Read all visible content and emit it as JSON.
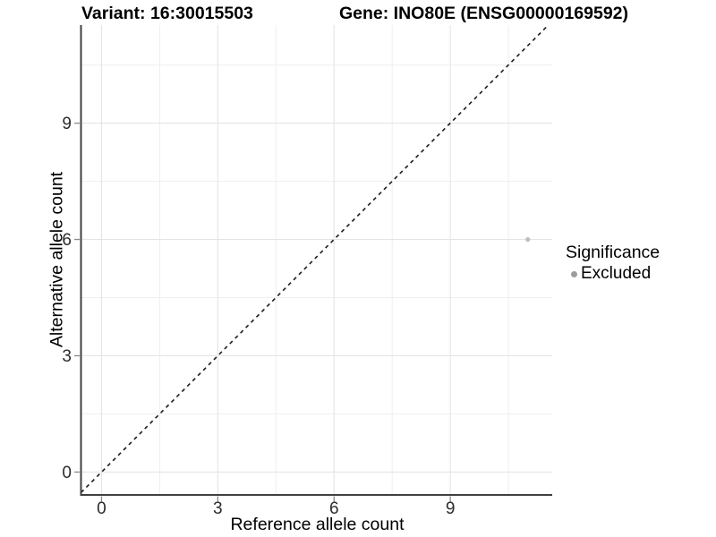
{
  "header": {
    "variant_title": "Variant: 16:30015503",
    "gene_title": "Gene: INO80E (ENSG00000169592)"
  },
  "legend": {
    "title": "Significance",
    "items": [
      {
        "label": "Excluded",
        "color": "#9c9c9c"
      }
    ]
  },
  "chart_data": {
    "type": "scatter",
    "xlabel": "Reference allele count",
    "ylabel": "Alternative allele count",
    "xlim": [
      -0.53,
      11.63
    ],
    "ylim": [
      -0.59,
      11.53
    ],
    "x_ticks": [
      0,
      3,
      6,
      9
    ],
    "y_ticks": [
      0,
      3,
      6,
      9
    ],
    "x_minor_ticks": [
      1.5,
      4.5,
      7.5,
      10.5
    ],
    "y_minor_ticks": [
      1.5,
      4.5,
      7.5,
      10.5
    ],
    "grid": true,
    "legend_position": "right",
    "points": [
      {
        "x": 11,
        "y": 6,
        "series": "Excluded",
        "color": "#bdbdbd"
      }
    ],
    "reference_line": {
      "kind": "identity",
      "equation": "y = x",
      "style": "dashed",
      "color": "#1a1a1a"
    },
    "style": {
      "background": "#ffffff",
      "axis_line_color": "#404040",
      "tick_mark_color": "#8a8a8a",
      "tick_label_color": "#2b2b2b",
      "grid_major_color": "#e4e4e4",
      "grid_minor_color": "#efefef"
    }
  }
}
